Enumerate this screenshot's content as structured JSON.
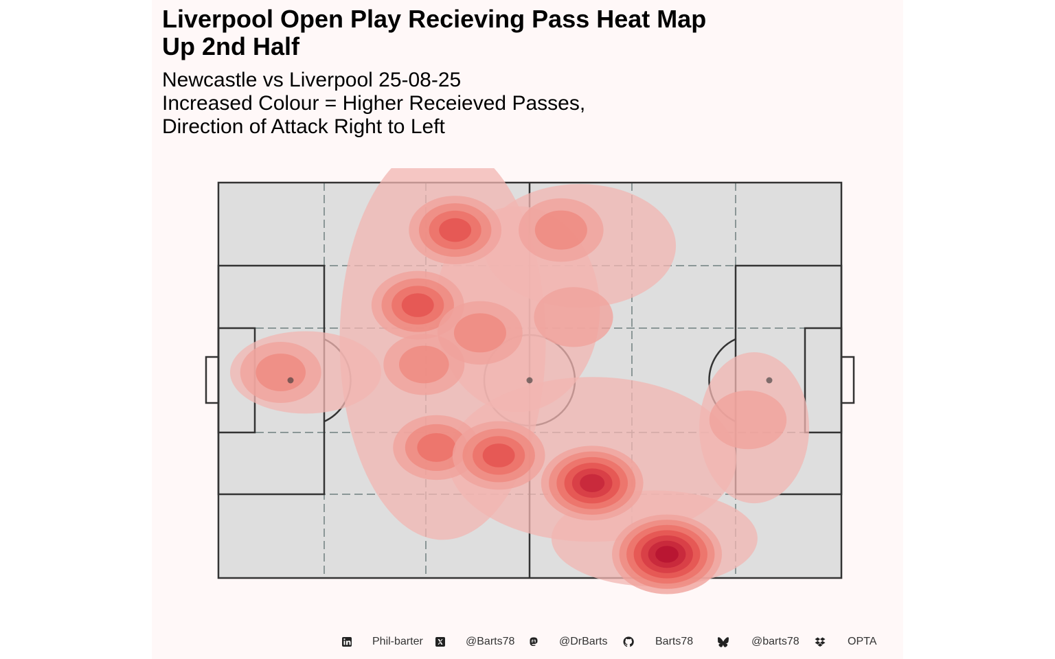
{
  "title_line1": "Liverpool Open Play Recieving Pass Heat Map",
  "title_line2": "Up 2nd Half",
  "subtitle_lines": [
    "Newcastle vs Liverpool 25-08-25",
    "Increased Colour = Higher Receieved Passes,",
    "Direction of Attack Right to Left"
  ],
  "colors": {
    "panel_bg": "#fff8f8",
    "pitch_fill": "#dedede",
    "pitch_line": "#333333",
    "zone_line": "#6f7f7f",
    "density_low": "#f0a39c",
    "density_high": "#b5122f"
  },
  "chart_data": {
    "type": "heatmap",
    "title": "Liverpool Open Play Recieving Pass Heat Map Up 2nd Half",
    "xlim": [
      0,
      100
    ],
    "ylim": [
      0,
      100
    ],
    "grid": false,
    "levels": 7,
    "hotspots": [
      {
        "x": 38,
        "y": 88,
        "density": 0.55
      },
      {
        "x": 32,
        "y": 69,
        "density": 0.55
      },
      {
        "x": 42,
        "y": 62,
        "density": 0.35
      },
      {
        "x": 55,
        "y": 88,
        "density": 0.35
      },
      {
        "x": 57,
        "y": 66,
        "density": 0.2
      },
      {
        "x": 35,
        "y": 33,
        "density": 0.4
      },
      {
        "x": 45,
        "y": 31,
        "density": 0.55
      },
      {
        "x": 60,
        "y": 24,
        "density": 0.8
      },
      {
        "x": 72,
        "y": 6,
        "density": 1.0
      },
      {
        "x": 10,
        "y": 52,
        "density": 0.25
      },
      {
        "x": 33,
        "y": 54,
        "density": 0.25
      },
      {
        "x": 85,
        "y": 40,
        "density": 0.15
      }
    ]
  },
  "footer": {
    "linkedin": "Phil-barter",
    "x": "@Barts78",
    "mastodon": "@DrBarts",
    "github": "Barts78",
    "bluesky": "@barts78",
    "source": "OPTA"
  }
}
